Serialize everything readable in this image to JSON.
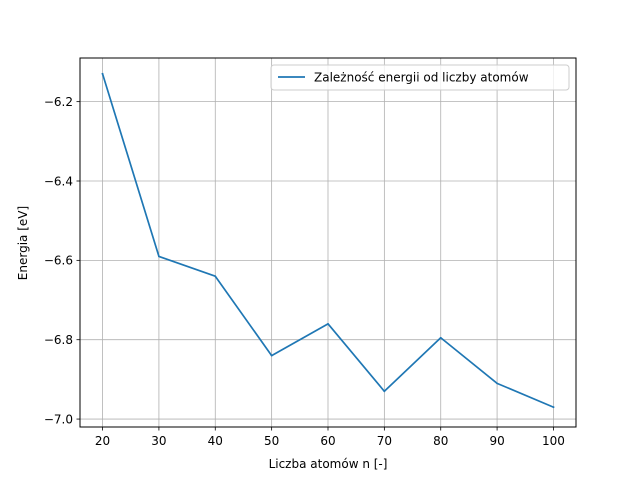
{
  "chart_data": {
    "type": "line",
    "title": "",
    "xlabel": "Liczba atomów n [-]",
    "ylabel": "Energia [eV]",
    "x": [
      20,
      30,
      40,
      50,
      60,
      70,
      80,
      90,
      100
    ],
    "series": [
      {
        "name": "Zależność energii od liczby atomów",
        "color": "#1f77b4",
        "values": [
          -6.13,
          -6.59,
          -6.64,
          -6.84,
          -6.76,
          -6.93,
          -6.795,
          -6.91,
          -6.97
        ]
      }
    ],
    "xlim": [
      16,
      104
    ],
    "ylim": [
      -7.02,
      -6.09
    ],
    "xticks": [
      20,
      30,
      40,
      50,
      60,
      70,
      80,
      90,
      100
    ],
    "xtick_labels": [
      "20",
      "30",
      "40",
      "50",
      "60",
      "70",
      "80",
      "90",
      "100"
    ],
    "yticks": [
      -7.0,
      -6.8,
      -6.6,
      -6.4,
      -6.2
    ],
    "ytick_labels": [
      "−7.0",
      "−6.8",
      "−6.6",
      "−6.4",
      "−6.2"
    ],
    "grid": true,
    "legend": "top-right"
  }
}
